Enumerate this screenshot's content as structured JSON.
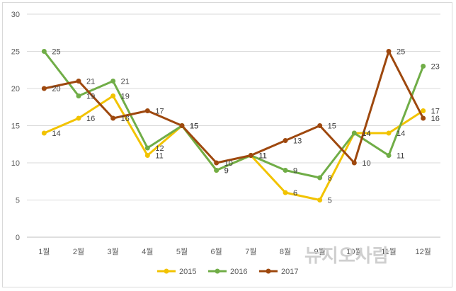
{
  "chart_data": {
    "type": "line",
    "categories": [
      "1월",
      "2월",
      "3월",
      "4월",
      "5월",
      "6월",
      "7월",
      "8월",
      "9월",
      "10월",
      "11월",
      "12월"
    ],
    "ylim": [
      0,
      30
    ],
    "yticks": [
      0,
      5,
      10,
      15,
      20,
      25,
      30
    ],
    "grid": true,
    "legend_position": "bottom",
    "series": [
      {
        "name": "2015",
        "color": "#f2c300",
        "values": [
          14,
          16,
          19,
          11,
          15,
          9,
          11,
          6,
          5,
          14,
          14,
          17
        ]
      },
      {
        "name": "2016",
        "color": "#70ad47",
        "values": [
          25,
          19,
          21,
          12,
          15,
          9,
          11,
          9,
          8,
          14,
          11,
          23
        ]
      },
      {
        "name": "2017",
        "color": "#9e480e",
        "values": [
          20,
          21,
          16,
          17,
          15,
          10,
          11,
          13,
          15,
          10,
          25,
          16
        ]
      }
    ]
  },
  "watermark": "뉴지오사람"
}
